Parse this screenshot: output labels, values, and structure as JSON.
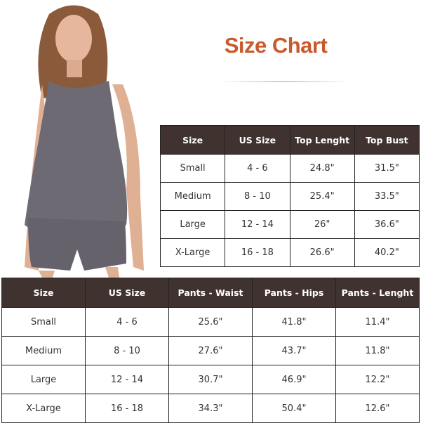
{
  "title": "Size Chart",
  "colors": {
    "title": "#c95a2c",
    "header_bg": "#40332f"
  },
  "top_table": {
    "headers": [
      "Size",
      "US Size",
      "Top Lenght",
      "Top Bust"
    ],
    "rows": [
      [
        "Small",
        "4 - 6",
        "24.8\"",
        "31.5\""
      ],
      [
        "Medium",
        "8 - 10",
        "25.4\"",
        "33.5\""
      ],
      [
        "Large",
        "12 - 14",
        "26\"",
        "36.6\""
      ],
      [
        "X-Large",
        "16 - 18",
        "26.6\"",
        "40.2\""
      ]
    ]
  },
  "bottom_table": {
    "headers": [
      "Size",
      "US Size",
      "Pants - Waist",
      "Pants - Hips",
      "Pants - Lenght"
    ],
    "rows": [
      [
        "Small",
        "4 - 6",
        "25.6\"",
        "41.8\"",
        "11.4\""
      ],
      [
        "Medium",
        "8 - 10",
        "27.6\"",
        "43.7\"",
        "11.8\""
      ],
      [
        "Large",
        "12 - 14",
        "30.7\"",
        "46.9\"",
        "12.2\""
      ],
      [
        "X-Large",
        "16 - 18",
        "34.3\"",
        "50.4\"",
        "12.6\""
      ]
    ]
  }
}
